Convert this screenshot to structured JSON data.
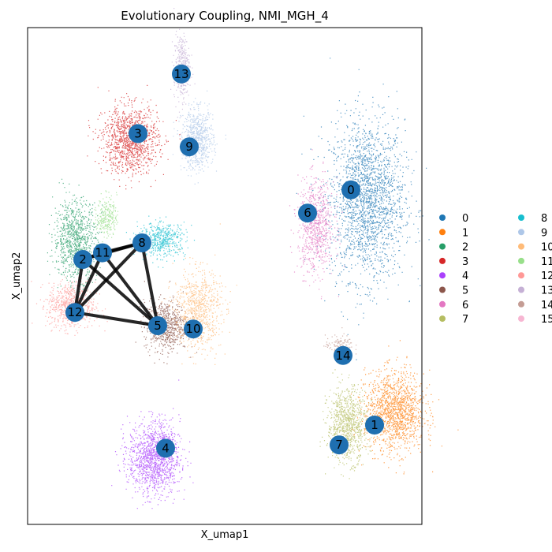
{
  "chart_data": {
    "type": "scatter",
    "title": "Evolutionary Coupling, NMI_MGH_4",
    "xlabel": "X_umap1",
    "ylabel": "X_umap2",
    "xticks": [],
    "yticks": [],
    "legend_position": "right",
    "clusters": [
      {
        "label": "0",
        "color": "#1f77b4",
        "x": 8.6,
        "y": 9.8,
        "sx": 0.95,
        "sy": 2.4,
        "n": 2200
      },
      {
        "label": "1",
        "color": "#ff7f0e",
        "x": 9.3,
        "y": 3.4,
        "sx": 0.75,
        "sy": 1.2,
        "n": 1400
      },
      {
        "label": "2",
        "color": "#279e68",
        "x": 1.2,
        "y": 8.6,
        "sx": 0.55,
        "sy": 1.2,
        "n": 900
      },
      {
        "label": "3",
        "color": "#d62728",
        "x": 2.6,
        "y": 11.6,
        "sx": 0.7,
        "sy": 1.0,
        "n": 1200
      },
      {
        "label": "4",
        "color": "#aa40fc",
        "x": 3.2,
        "y": 2.0,
        "sx": 0.65,
        "sy": 1.1,
        "n": 1300
      },
      {
        "label": "5",
        "color": "#8c564b",
        "x": 3.5,
        "y": 6.0,
        "sx": 0.55,
        "sy": 0.75,
        "n": 700
      },
      {
        "label": "6",
        "color": "#e377c2",
        "x": 7.3,
        "y": 9.0,
        "sx": 0.45,
        "sy": 1.4,
        "n": 800
      },
      {
        "label": "7",
        "color": "#b5bd61",
        "x": 8.1,
        "y": 3.0,
        "sx": 0.5,
        "sy": 1.1,
        "n": 900
      },
      {
        "label": "8",
        "color": "#17becf",
        "x": 3.4,
        "y": 8.6,
        "sx": 0.6,
        "sy": 0.5,
        "n": 500
      },
      {
        "label": "9",
        "color": "#aec7e8",
        "x": 4.3,
        "y": 11.6,
        "sx": 0.4,
        "sy": 0.9,
        "n": 700
      },
      {
        "label": "10",
        "color": "#ffbb78",
        "x": 4.3,
        "y": 6.5,
        "sx": 0.6,
        "sy": 1.2,
        "n": 800
      },
      {
        "label": "11",
        "color": "#98df8a",
        "x": 2.0,
        "y": 9.3,
        "sx": 0.25,
        "sy": 0.6,
        "n": 250
      },
      {
        "label": "12",
        "color": "#ff9896",
        "x": 1.1,
        "y": 6.6,
        "sx": 0.6,
        "sy": 0.7,
        "n": 700
      },
      {
        "label": "13",
        "color": "#c5b0d5",
        "x": 3.9,
        "y": 13.8,
        "sx": 0.2,
        "sy": 1.0,
        "n": 350
      },
      {
        "label": "14",
        "color": "#c49c94",
        "x": 7.9,
        "y": 5.4,
        "sx": 0.35,
        "sy": 0.3,
        "n": 120
      },
      {
        "label": "15",
        "color": "#f7b6d2",
        "x": 5.0,
        "y": 5.0,
        "sx": 0.1,
        "sy": 0.1,
        "n": 0
      }
    ],
    "nodes": [
      {
        "label": "0",
        "x": 8.2,
        "y": 10.1
      },
      {
        "label": "1",
        "x": 8.8,
        "y": 3.0
      },
      {
        "label": "2",
        "x": 1.4,
        "y": 8.0
      },
      {
        "label": "3",
        "x": 2.8,
        "y": 11.8
      },
      {
        "label": "4",
        "x": 3.5,
        "y": 2.3
      },
      {
        "label": "5",
        "x": 3.3,
        "y": 6.0
      },
      {
        "label": "6",
        "x": 7.1,
        "y": 9.4
      },
      {
        "label": "7",
        "x": 7.9,
        "y": 2.4
      },
      {
        "label": "8",
        "x": 2.9,
        "y": 8.5
      },
      {
        "label": "9",
        "x": 4.1,
        "y": 11.4
      },
      {
        "label": "10",
        "x": 4.2,
        "y": 5.9
      },
      {
        "label": "11",
        "x": 1.9,
        "y": 8.2
      },
      {
        "label": "12",
        "x": 1.2,
        "y": 6.4
      },
      {
        "label": "13",
        "x": 3.9,
        "y": 13.6
      },
      {
        "label": "14",
        "x": 8.0,
        "y": 5.1
      }
    ],
    "edges": [
      [
        "2",
        "11"
      ],
      [
        "2",
        "8"
      ],
      [
        "2",
        "12"
      ],
      [
        "2",
        "5"
      ],
      [
        "11",
        "8"
      ],
      [
        "11",
        "12"
      ],
      [
        "11",
        "5"
      ],
      [
        "8",
        "12"
      ],
      [
        "8",
        "5"
      ],
      [
        "12",
        "5"
      ]
    ],
    "xlim": [
      0,
      10
    ],
    "ylim": [
      0,
      15
    ],
    "legend_columns": 2
  }
}
